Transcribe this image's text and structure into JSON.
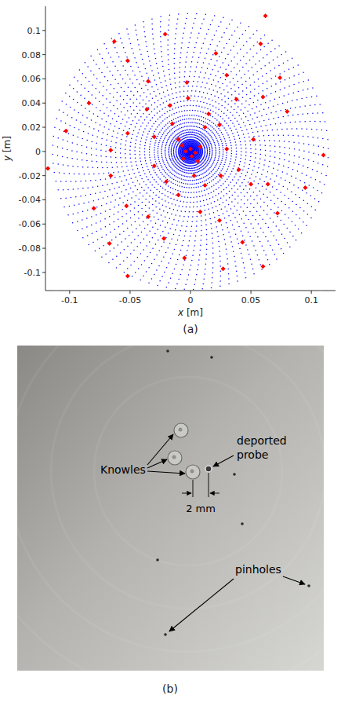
{
  "chart_data": {
    "type": "scatter",
    "caption": "(a)",
    "x_label": "x [m]",
    "y_label": "y [m]",
    "xlim": [
      -0.12,
      0.12
    ],
    "ylim": [
      -0.115,
      0.12
    ],
    "xticks": [
      -0.1,
      -0.05,
      0,
      0.05,
      0.1
    ],
    "yticks": [
      -0.1,
      -0.08,
      -0.06,
      -0.04,
      -0.02,
      0,
      0.02,
      0.04,
      0.06,
      0.08,
      0.1
    ],
    "grid": false,
    "series": [
      {
        "color": "#0000ff",
        "marker": "dot",
        "points_per_ring": 96,
        "radii": [
          0.001,
          0.002,
          0.003,
          0.004,
          0.005,
          0.006,
          0.007,
          0.008,
          0.009,
          0.01,
          0.012,
          0.014,
          0.016,
          0.018,
          0.021,
          0.024,
          0.027,
          0.03,
          0.034,
          0.038,
          0.042,
          0.046,
          0.05,
          0.054,
          0.058,
          0.062,
          0.066,
          0.07,
          0.074,
          0.078,
          0.082,
          0.086,
          0.09,
          0.094,
          0.098,
          0.102,
          0.106,
          0.11,
          0.114
        ],
        "angle_offsets": [
          0.8,
          1.6,
          2.4,
          3.2,
          4,
          4.8,
          5.6,
          6.4,
          7.2,
          8,
          9.6,
          11.2,
          12.8,
          14.4,
          16.8,
          19.2,
          21.6,
          24,
          27.2,
          30.4,
          33.6,
          36.8,
          40,
          43.2,
          46.4,
          49.6,
          52.8,
          56,
          59.2,
          62.4,
          65.6,
          68.8,
          72,
          75.2,
          78.4,
          81.6,
          84.8,
          88,
          91.2
        ]
      },
      {
        "color": "#ff0000",
        "marker": "diamond",
        "x": [
          0.062,
          -0.063,
          -0.021,
          0.058,
          0.021,
          0.074,
          0.08,
          0.11,
          0.095,
          0.072,
          0.06,
          0.027,
          -0.005,
          -0.052,
          -0.067,
          -0.08,
          -0.103,
          -0.118,
          -0.084,
          0.043,
          -0.052,
          -0.035,
          -0.003,
          0.03,
          0.038,
          0.06,
          0.052,
          0.05,
          0.024,
          0.008,
          -0.022,
          -0.035,
          -0.053,
          -0.066,
          -0.066,
          -0.052,
          -0.036,
          -0.017,
          0.04,
          0.064,
          0.015,
          0.024,
          0.03,
          0.025,
          0.012,
          0.003,
          -0.01,
          -0.02,
          -0.03,
          -0.03,
          -0.015,
          -0.002,
          0.012,
          -0.01,
          0,
          0.004,
          -0.004,
          0.001,
          0.008,
          -0.007,
          0.006,
          -0.006
        ],
        "values": [
          0.112,
          0.091,
          0.097,
          0.089,
          0.081,
          0.061,
          0.033,
          -0.003,
          -0.03,
          -0.051,
          -0.095,
          -0.097,
          -0.088,
          -0.103,
          -0.076,
          -0.047,
          0.017,
          -0.014,
          0.04,
          -0.075,
          0.075,
          0.058,
          0.057,
          0.063,
          0.043,
          0.045,
          0.01,
          -0.027,
          -0.057,
          -0.05,
          -0.072,
          -0.054,
          -0.045,
          -0.02,
          0.001,
          0.015,
          0.035,
          0.038,
          -0.015,
          -0.027,
          0.031,
          0.022,
          0.002,
          -0.02,
          -0.028,
          -0.02,
          -0.036,
          -0.025,
          -0.012,
          0.012,
          0.023,
          0.044,
          0.02,
          0.01,
          0.002,
          -0.001,
          0,
          -0.004,
          0.004,
          0.005,
          -0.008,
          -0.006
        ]
      }
    ]
  },
  "panel_b": {
    "caption": "(b)",
    "knowles": "Knowles",
    "probe": "deported probe",
    "spacing": "2 mm",
    "pinholes": "pinholes"
  }
}
